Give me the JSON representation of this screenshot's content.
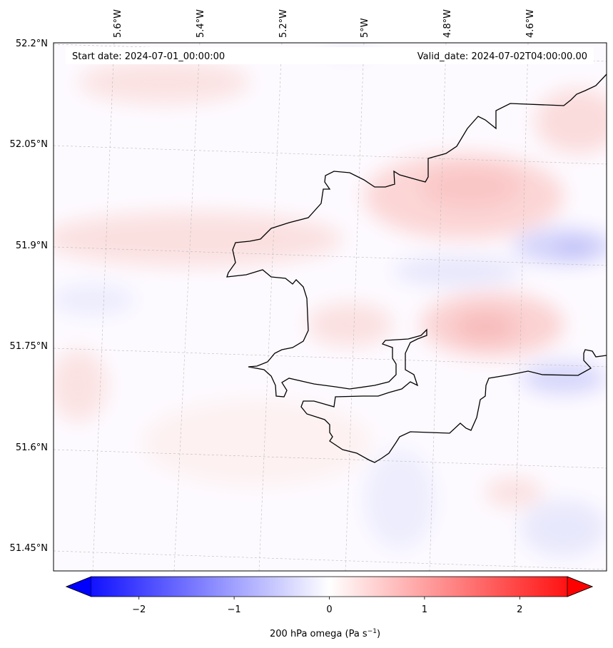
{
  "header": {
    "start_date": "Start date: 2024-07-01_00:00:00",
    "valid_date": "Valid_date: 2024-07-02T04:00:00.00"
  },
  "lon_labels": [
    "5.6°W",
    "5.4°W",
    "5.2°W",
    "5°W",
    "4.8°W",
    "4.6°W"
  ],
  "lat_labels": [
    "52.2°N",
    "52.05°N",
    "51.9°N",
    "51.75°N",
    "51.6°N",
    "51.45°N"
  ],
  "colorbar": {
    "ticks": [
      "−2",
      "−1",
      "0",
      "1",
      "2"
    ],
    "tick_values": [
      -2,
      -1,
      0,
      1,
      2
    ],
    "range": [
      -2.5,
      2.5
    ],
    "label_main": "200 hPa omega (Pa s",
    "label_exp": "−1",
    "label_close": ")",
    "color_low": "#0000ff",
    "color_mid": "#ffffff",
    "color_high": "#ff0000"
  },
  "colors": {
    "coastline": "#000000",
    "gridline": "#b0b0b0",
    "frame": "#000000"
  }
}
